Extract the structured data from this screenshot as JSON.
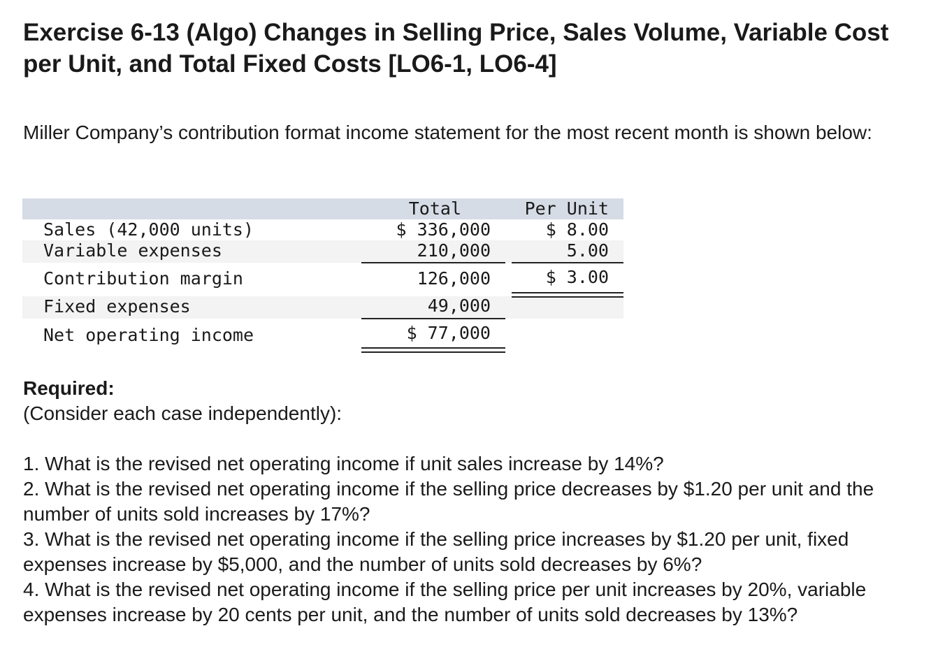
{
  "title": "Exercise 6-13 (Algo) Changes in Selling Price, Sales Volume, Variable Cost per Unit, and Total Fixed Costs [LO6-1, LO6-4]",
  "intro": "Miller Company’s contribution format income statement for the most recent month is shown below:",
  "statement": {
    "headers": {
      "total": "Total",
      "per_unit": "Per Unit"
    },
    "rows": [
      {
        "label": "Sales (42,000 units)",
        "total": "$ 336,000",
        "per_unit": "$ 8.00"
      },
      {
        "label": "Variable expenses",
        "total": "210,000",
        "per_unit": "5.00"
      },
      {
        "label": "Contribution margin",
        "total": "126,000",
        "per_unit": "$ 3.00"
      },
      {
        "label": "Fixed expenses",
        "total": "49,000",
        "per_unit": ""
      },
      {
        "label": "Net operating income",
        "total": "$ 77,000",
        "per_unit": ""
      }
    ]
  },
  "required": {
    "heading": "Required:",
    "note": "(Consider each case independently):",
    "questions": [
      "1. What is the revised net operating income if unit sales increase by 14%?",
      "2. What is the revised net operating income if the selling price decreases by $1.20 per unit and the number of units sold increases by 17%?",
      "3. What is the revised net operating income if the selling price increases by $1.20 per unit, fixed expenses increase by $5,000, and the number of units sold decreases by 6%?",
      "4. What is the revised net operating income if the selling price per unit increases by 20%, variable expenses increase by 20 cents per unit, and the number of units sold decreases by 13%?"
    ]
  }
}
